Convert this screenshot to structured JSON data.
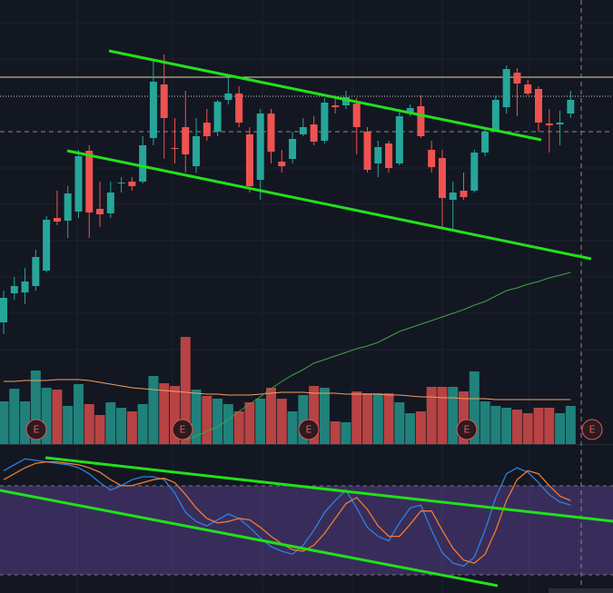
{
  "chart_data": {
    "type": "candlestick",
    "ylim": [
      -100,
      400
    ],
    "up_color": "#26a69a",
    "down_color": "#ef5350",
    "open": [
      45,
      77,
      78,
      85,
      102,
      160,
      157,
      167,
      234,
      170,
      165,
      198,
      200,
      200,
      248,
      307,
      237,
      260,
      217,
      265,
      255,
      290,
      297,
      252,
      202,
      275,
      222,
      225,
      252,
      263,
      245,
      284,
      284,
      286,
      255,
      220,
      242,
      220,
      275,
      283,
      235,
      226,
      180,
      190,
      190,
      232,
      257,
      282,
      320,
      307,
      302,
      264,
      263,
      275
    ],
    "high": [
      80,
      95,
      105,
      125,
      162,
      190,
      195,
      235,
      240,
      200,
      200,
      205,
      205,
      250,
      335,
      340,
      270,
      300,
      270,
      280,
      290,
      315,
      305,
      260,
      280,
      280,
      235,
      255,
      270,
      272,
      292,
      295,
      300,
      292,
      260,
      245,
      245,
      280,
      285,
      295,
      245,
      235,
      200,
      210,
      235,
      260,
      295,
      328,
      325,
      312,
      305,
      280,
      278,
      300
    ],
    "low": [
      32,
      70,
      65,
      80,
      100,
      152,
      138,
      160,
      138,
      150,
      160,
      188,
      190,
      198,
      240,
      225,
      220,
      210,
      210,
      245,
      250,
      285,
      260,
      188,
      180,
      220,
      210,
      220,
      250,
      240,
      242,
      275,
      280,
      230,
      210,
      205,
      210,
      218,
      272,
      248,
      210,
      150,
      145,
      180,
      188,
      228,
      255,
      275,
      272,
      295,
      255,
      232,
      240,
      270
    ],
    "close": [
      72,
      85,
      90,
      117,
      158,
      156,
      187,
      228,
      166,
      164,
      188,
      199,
      195,
      240,
      310,
      270,
      236,
      230,
      250,
      250,
      288,
      297,
      265,
      195,
      275,
      233,
      217,
      247,
      260,
      244,
      287,
      282,
      293,
      260,
      213,
      238,
      215,
      272,
      281,
      250,
      216,
      182,
      188,
      183,
      232,
      255,
      290,
      324,
      308,
      297,
      265,
      262,
      265,
      290
    ],
    "price_ma": {
      "color": "#43a047",
      "values": [
        null,
        null,
        null,
        null,
        null,
        null,
        null,
        null,
        null,
        null,
        null,
        null,
        null,
        null,
        null,
        null,
        null,
        -85,
        -80,
        -75,
        -70,
        -62,
        -53,
        -45,
        -37,
        -28,
        -20,
        -13,
        -7,
        0,
        4,
        8,
        12,
        16,
        19,
        23,
        29,
        35,
        39,
        43,
        47,
        51,
        55,
        59,
        64,
        68,
        74,
        80,
        83,
        87,
        90,
        94,
        97,
        100
      ]
    },
    "volume": {
      "ylim": [
        0,
        130
      ],
      "values": [
        47,
        61,
        47,
        81,
        62,
        60,
        42,
        66,
        44,
        32,
        46,
        40,
        36,
        44,
        75,
        67,
        64,
        118,
        60,
        53,
        50,
        44,
        36,
        46,
        50,
        62,
        50,
        36,
        54,
        64,
        62,
        25,
        24,
        58,
        56,
        56,
        56,
        46,
        34,
        36,
        63,
        63,
        63,
        58,
        80,
        47,
        42,
        40,
        38,
        34,
        40,
        40,
        34,
        42
      ],
      "ma": {
        "color": "#f0a060",
        "values": [
          69,
          69,
          70,
          70,
          70,
          71,
          71,
          71,
          70,
          68,
          66,
          64,
          62,
          61,
          60,
          59,
          58,
          57,
          56,
          55,
          55,
          54,
          54,
          54,
          55,
          56,
          57,
          57,
          57,
          56,
          56,
          56,
          55,
          55,
          55,
          55,
          54,
          54,
          53,
          52,
          52,
          51,
          51,
          50,
          50,
          50,
          49,
          49,
          49,
          49,
          49,
          49,
          49,
          49
        ]
      }
    },
    "oscillator": {
      "ylim": [
        0,
        100
      ],
      "series": [
        {
          "color": "#2f7fe0",
          "values": [
            90,
            94,
            98,
            97,
            96,
            95,
            94,
            92,
            88,
            82,
            77,
            80,
            84,
            86,
            86,
            84,
            75,
            62,
            56,
            53,
            57,
            61,
            58,
            52,
            45,
            39,
            36,
            34,
            40,
            50,
            62,
            70,
            77,
            65,
            52,
            46,
            43,
            55,
            65,
            67,
            50,
            35,
            28,
            26,
            32,
            50,
            72,
            88,
            92,
            89,
            82,
            74,
            69,
            67
          ]
        },
        {
          "color": "#f07a30",
          "values": [
            84,
            88,
            92,
            95,
            96,
            96,
            95,
            94,
            92,
            89,
            84,
            80,
            80,
            82,
            84,
            85,
            82,
            74,
            65,
            58,
            55,
            56,
            58,
            57,
            52,
            46,
            41,
            37,
            36,
            40,
            48,
            58,
            68,
            72,
            64,
            53,
            46,
            46,
            54,
            63,
            63,
            50,
            38,
            30,
            28,
            34,
            50,
            70,
            84,
            90,
            88,
            80,
            73,
            70
          ]
        }
      ]
    },
    "events": [
      "E",
      "E",
      "E",
      "E",
      "E"
    ]
  }
}
